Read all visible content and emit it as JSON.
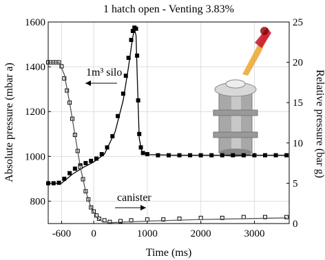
{
  "chart_data": {
    "type": "line",
    "title": "1 hatch open - Venting 3.83%",
    "xlabel": "Time (ms)",
    "ylabel": "Absolute pressure (mbar a)",
    "y2label": "Relative pressure (bar g)",
    "annotations": [
      "1m³ silo",
      "canister"
    ],
    "xlim": [
      -850,
      3650
    ],
    "xticks": [
      -600,
      0,
      1000,
      2000,
      3000
    ],
    "ylim": [
      700,
      1600
    ],
    "yticks": [
      800,
      1000,
      1200,
      1400,
      1600
    ],
    "y2lim": [
      0,
      25
    ],
    "y2ticks": [
      0,
      5,
      10,
      15,
      20,
      25
    ],
    "grid": true,
    "series": [
      {
        "style": "filled-markers",
        "color": "#000000",
        "x": [
          -850,
          -750,
          -650,
          -550,
          -450,
          -350,
          -250,
          -150,
          -50,
          50,
          150,
          250,
          350,
          450,
          550,
          600,
          650,
          700,
          730,
          760,
          790,
          810,
          830,
          850,
          880,
          920,
          1000,
          1200,
          1400,
          1600,
          1800,
          2000,
          2200,
          2400,
          2600,
          2800,
          3000,
          3200,
          3400,
          3600
        ],
        "values": [
          880,
          880,
          882,
          900,
          925,
          945,
          960,
          970,
          980,
          990,
          1010,
          1040,
          1090,
          1180,
          1280,
          1360,
          1440,
          1520,
          1560,
          1575,
          1570,
          1450,
          1250,
          1100,
          1040,
          1015,
          1010,
          1005,
          1005,
          1005,
          1005,
          1005,
          1005,
          1005,
          1005,
          1005,
          1005,
          1005,
          1005,
          1005
        ]
      },
      {
        "style": "line",
        "color": "#000000",
        "x": [
          -850,
          -600,
          -400,
          -200,
          0,
          200,
          400,
          550,
          650,
          720,
          760,
          790,
          820,
          850,
          900,
          1000,
          1500,
          2000,
          3000,
          3600
        ],
        "values": [
          880,
          880,
          920,
          950,
          975,
          1010,
          1110,
          1250,
          1400,
          1520,
          1570,
          1540,
          1300,
          1080,
          1020,
          1008,
          1005,
          1005,
          1005,
          1005
        ]
      },
      {
        "style": "open-markers",
        "color": "#000000",
        "axis": "y2",
        "x": [
          -850,
          -800,
          -750,
          -700,
          -650,
          -600,
          -550,
          -500,
          -450,
          -400,
          -350,
          -300,
          -250,
          -200,
          -150,
          -100,
          -50,
          0,
          50,
          100,
          200,
          300,
          500,
          700,
          1000,
          1300,
          1600,
          2000,
          2400,
          2800,
          3200,
          3600
        ],
        "values": [
          20,
          20,
          20,
          20,
          20,
          19.5,
          18,
          16.5,
          15,
          13,
          11,
          9,
          7,
          5.5,
          4,
          3,
          2,
          1.5,
          1,
          0.6,
          0.4,
          0.2,
          0.3,
          0.4,
          0.5,
          0.5,
          0.6,
          0.7,
          0.7,
          0.8,
          0.8,
          0.8
        ]
      },
      {
        "style": "line",
        "color": "#555555",
        "axis": "y2",
        "x": [
          -850,
          -650,
          -550,
          -450,
          -350,
          -250,
          -150,
          -50,
          50,
          150,
          300,
          600,
          1000,
          2000,
          3600
        ],
        "values": [
          20,
          20,
          18.5,
          15,
          11,
          7,
          4,
          2,
          0.8,
          0.3,
          0.1,
          0.2,
          0.3,
          0.5,
          0.7
        ]
      }
    ]
  }
}
